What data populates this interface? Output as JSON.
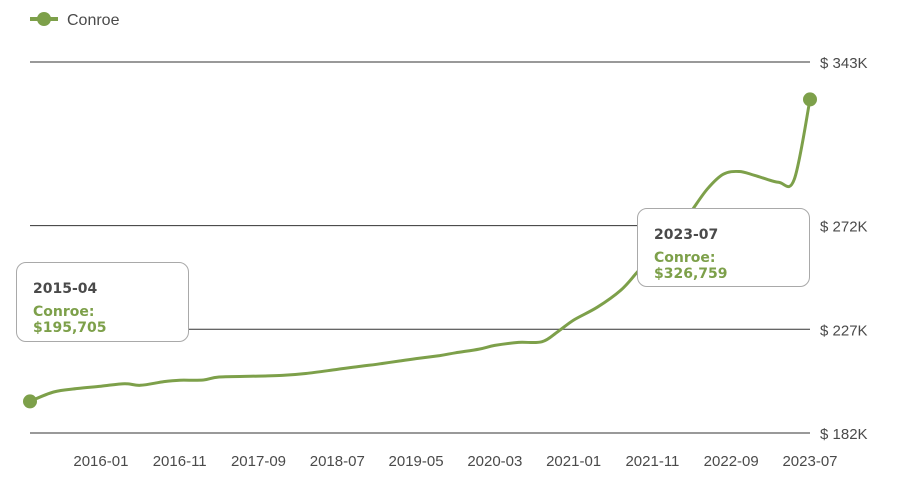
{
  "legend": {
    "label": "Conroe",
    "color": "#7da04a"
  },
  "chart_data": {
    "type": "line",
    "legend_position": "top-left",
    "grid": "horizontal",
    "ylim": [
      182000,
      343000
    ],
    "y_ticks": [
      {
        "value": 182000,
        "label": "$ 182K"
      },
      {
        "value": 227000,
        "label": "$ 227K"
      },
      {
        "value": 272000,
        "label": "$ 272K"
      },
      {
        "value": 343000,
        "label": "$ 343K"
      }
    ],
    "x_ticks": [
      "2016-01",
      "2016-11",
      "2017-09",
      "2018-07",
      "2019-05",
      "2020-03",
      "2021-01",
      "2021-11",
      "2022-09",
      "2023-07"
    ],
    "series": [
      {
        "name": "Conroe",
        "color": "#7da04a",
        "points": [
          [
            "2015-04",
            195705
          ],
          [
            "2015-07",
            199800
          ],
          [
            "2015-10",
            201300
          ],
          [
            "2016-01",
            202300
          ],
          [
            "2016-04",
            203400
          ],
          [
            "2016-06",
            202700
          ],
          [
            "2016-09",
            204300
          ],
          [
            "2016-11",
            204900
          ],
          [
            "2017-02",
            205000
          ],
          [
            "2017-04",
            206300
          ],
          [
            "2017-09",
            206700
          ],
          [
            "2017-12",
            207000
          ],
          [
            "2018-03",
            207800
          ],
          [
            "2018-07",
            209600
          ],
          [
            "2018-10",
            211000
          ],
          [
            "2018-12",
            211800
          ],
          [
            "2019-03",
            213300
          ],
          [
            "2019-05",
            214300
          ],
          [
            "2019-08",
            215600
          ],
          [
            "2019-10",
            216800
          ],
          [
            "2020-01",
            218400
          ],
          [
            "2020-03",
            220000
          ],
          [
            "2020-06",
            221300
          ],
          [
            "2020-09",
            221600
          ],
          [
            "2020-11",
            226000
          ],
          [
            "2021-01",
            231000
          ],
          [
            "2021-04",
            236600
          ],
          [
            "2021-07",
            244000
          ],
          [
            "2021-09",
            251500
          ],
          [
            "2021-11",
            259300
          ],
          [
            "2022-02",
            268500
          ],
          [
            "2022-04",
            278500
          ],
          [
            "2022-06",
            288000
          ],
          [
            "2022-08",
            294300
          ],
          [
            "2022-10",
            295500
          ],
          [
            "2022-12",
            293800
          ],
          [
            "2023-03",
            290800
          ],
          [
            "2023-05",
            292000
          ],
          [
            "2023-07",
            326759
          ]
        ]
      }
    ],
    "tooltips": [
      {
        "date": "2015-04",
        "series": "Conroe",
        "value": "$195,705"
      },
      {
        "date": "2023-07",
        "series": "Conroe",
        "value": "$326,759"
      }
    ]
  }
}
